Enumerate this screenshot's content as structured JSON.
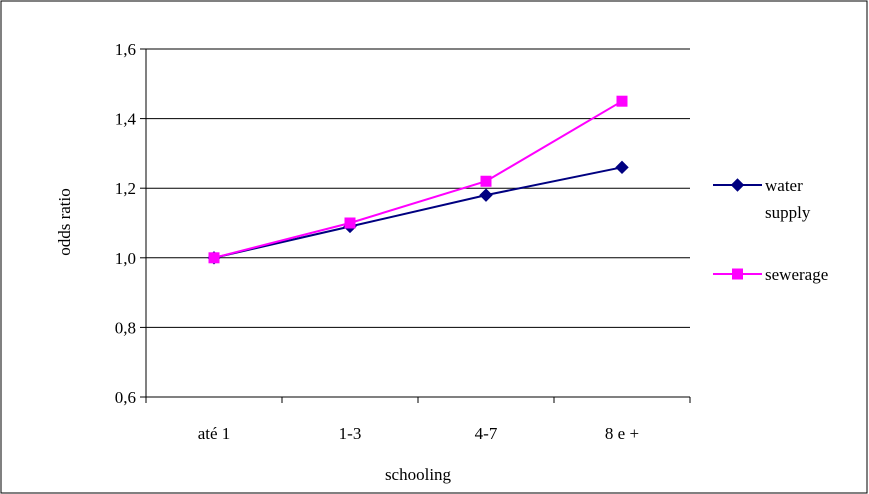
{
  "chart_data": {
    "type": "line",
    "title": "",
    "xlabel": "schooling",
    "ylabel": "odds ratio",
    "categories": [
      "até 1",
      "1-3",
      "4-7",
      "8 e +"
    ],
    "ylim": [
      0.6,
      1.6
    ],
    "yticks": [
      0.6,
      0.8,
      1.0,
      1.2,
      1.4,
      1.6
    ],
    "ytick_labels": [
      "0,6",
      "0,8",
      "1,0",
      "1,2",
      "1,4",
      "1,6"
    ],
    "grid": true,
    "legend_position": "right",
    "series": [
      {
        "name_lines": [
          "water",
          "supply"
        ],
        "values": [
          1.0,
          1.09,
          1.18,
          1.26
        ],
        "color": "#000080",
        "marker": "diamond"
      },
      {
        "name_lines": [
          "sewerage"
        ],
        "values": [
          1.0,
          1.1,
          1.22,
          1.45
        ],
        "color": "#ff00ff",
        "marker": "square"
      }
    ]
  }
}
